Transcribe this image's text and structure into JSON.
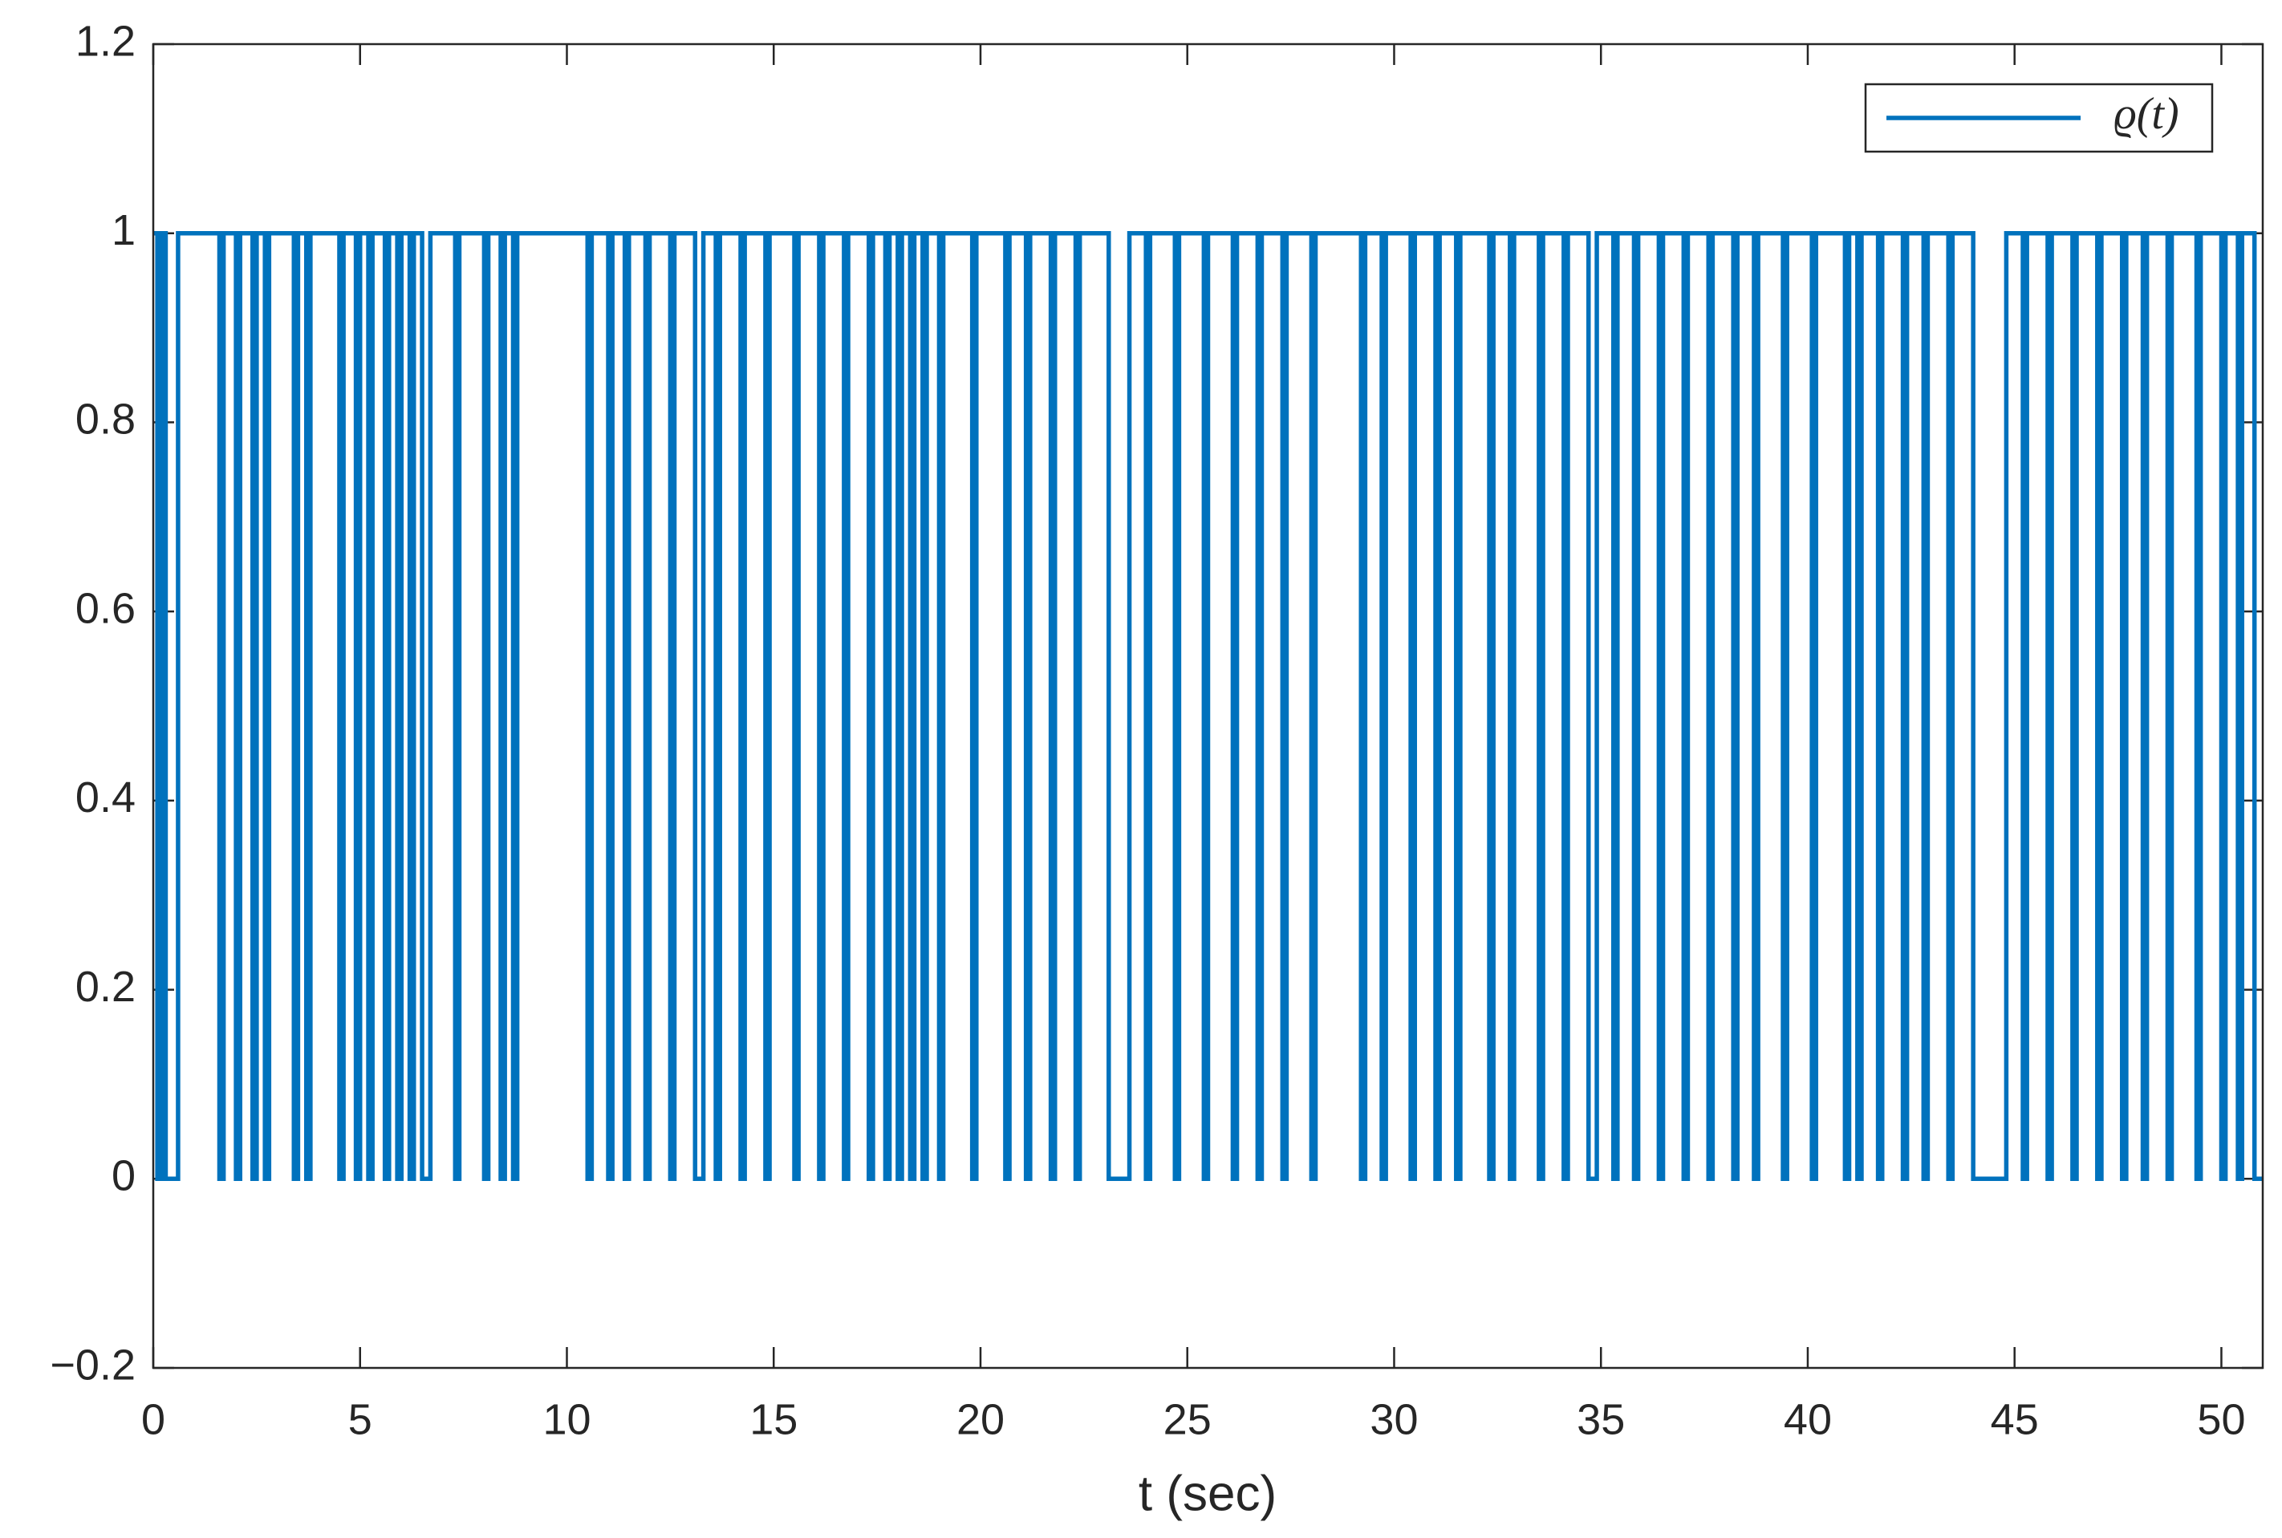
{
  "chart_data": {
    "type": "line",
    "drawstyle": "steps-post",
    "xlabel": "t (sec)",
    "xlim": [
      0,
      51
    ],
    "ylim": [
      -0.2,
      1.2
    ],
    "xticks": [
      0,
      5,
      10,
      15,
      20,
      25,
      30,
      35,
      40,
      45,
      50
    ],
    "yticks": [
      {
        "value": -0.2,
        "label": "−0.2"
      },
      0,
      0.2,
      0.4,
      0.6,
      0.8,
      1,
      1.2
    ],
    "grid": false,
    "legend": "northeast",
    "x": [
      0,
      0.1,
      0.2,
      0.3,
      0.6,
      1.6,
      1.7,
      2.0,
      2.1,
      2.4,
      2.5,
      2.7,
      2.8,
      3.4,
      3.5,
      3.7,
      3.8,
      4.5,
      4.6,
      4.9,
      5.0,
      5.2,
      5.3,
      5.6,
      5.7,
      5.9,
      6.0,
      6.2,
      6.3,
      6.5,
      6.7,
      7.3,
      7.4,
      8.0,
      8.1,
      8.4,
      8.5,
      8.7,
      8.8,
      10.5,
      10.6,
      11.0,
      11.1,
      11.4,
      11.5,
      11.9,
      12.0,
      12.5,
      12.6,
      13.1,
      13.3,
      13.6,
      13.7,
      14.2,
      14.3,
      14.8,
      14.9,
      15.5,
      15.6,
      16.1,
      16.2,
      16.7,
      16.8,
      17.3,
      17.4,
      17.7,
      17.8,
      18.0,
      18.1,
      18.3,
      18.4,
      18.6,
      18.7,
      19.0,
      19.1,
      19.8,
      19.9,
      20.6,
      20.7,
      21.1,
      21.2,
      21.7,
      21.8,
      22.3,
      22.4,
      23.1,
      23.6,
      24.0,
      24.1,
      24.7,
      24.8,
      25.4,
      25.5,
      26.1,
      26.2,
      26.7,
      26.8,
      27.3,
      27.4,
      28.0,
      28.1,
      29.2,
      29.3,
      29.7,
      29.8,
      30.4,
      30.5,
      31.0,
      31.1,
      31.5,
      31.6,
      32.3,
      32.4,
      32.8,
      32.9,
      33.5,
      33.6,
      34.1,
      34.2,
      34.7,
      34.9,
      35.3,
      35.4,
      35.8,
      35.9,
      36.4,
      36.5,
      37.0,
      37.1,
      37.6,
      37.7,
      38.2,
      38.3,
      38.7,
      38.8,
      39.4,
      39.5,
      40.1,
      40.2,
      40.9,
      41.0,
      41.2,
      41.3,
      41.7,
      41.8,
      42.3,
      42.4,
      42.8,
      42.9,
      43.4,
      43.5,
      44.0,
      44.8,
      45.2,
      45.3,
      45.8,
      45.9,
      46.4,
      46.5,
      47.0,
      47.1,
      47.6,
      47.7,
      48.1,
      48.2,
      48.7,
      48.8,
      49.4,
      49.5,
      50.0,
      50.1,
      50.4,
      50.5,
      50.8
    ],
    "series": [
      {
        "name": "ϱ(t)",
        "color": "#0072bd",
        "values": [
          1,
          0,
          1,
          0,
          1,
          0,
          1,
          0,
          1,
          0,
          1,
          0,
          1,
          0,
          1,
          0,
          1,
          0,
          1,
          0,
          1,
          0,
          1,
          0,
          1,
          0,
          1,
          0,
          1,
          0,
          1,
          0,
          1,
          0,
          1,
          0,
          1,
          0,
          1,
          0,
          1,
          0,
          1,
          0,
          1,
          0,
          1,
          0,
          1,
          0,
          1,
          0,
          1,
          0,
          1,
          0,
          1,
          0,
          1,
          0,
          1,
          0,
          1,
          0,
          1,
          0,
          1,
          0,
          1,
          0,
          1,
          0,
          1,
          0,
          1,
          0,
          1,
          0,
          1,
          0,
          1,
          0,
          1,
          0,
          1,
          0,
          1,
          0,
          1,
          0,
          1,
          0,
          1,
          0,
          1,
          0,
          1,
          0,
          1,
          0,
          1,
          0,
          1,
          0,
          1,
          0,
          1,
          0,
          1,
          0,
          1,
          0,
          1,
          0,
          1,
          0,
          1,
          0,
          1,
          0,
          1,
          0,
          1,
          0,
          1,
          0,
          1,
          0,
          1,
          0,
          1,
          0,
          1,
          0,
          1,
          0,
          1,
          0,
          1,
          0,
          1,
          0,
          1,
          0,
          1,
          0,
          1,
          0,
          1,
          0,
          1,
          0,
          1,
          0,
          1,
          0,
          1,
          0,
          1,
          0,
          1,
          0,
          1,
          0,
          1,
          0,
          1,
          0,
          1,
          0,
          1,
          0,
          1,
          0
        ]
      }
    ]
  }
}
